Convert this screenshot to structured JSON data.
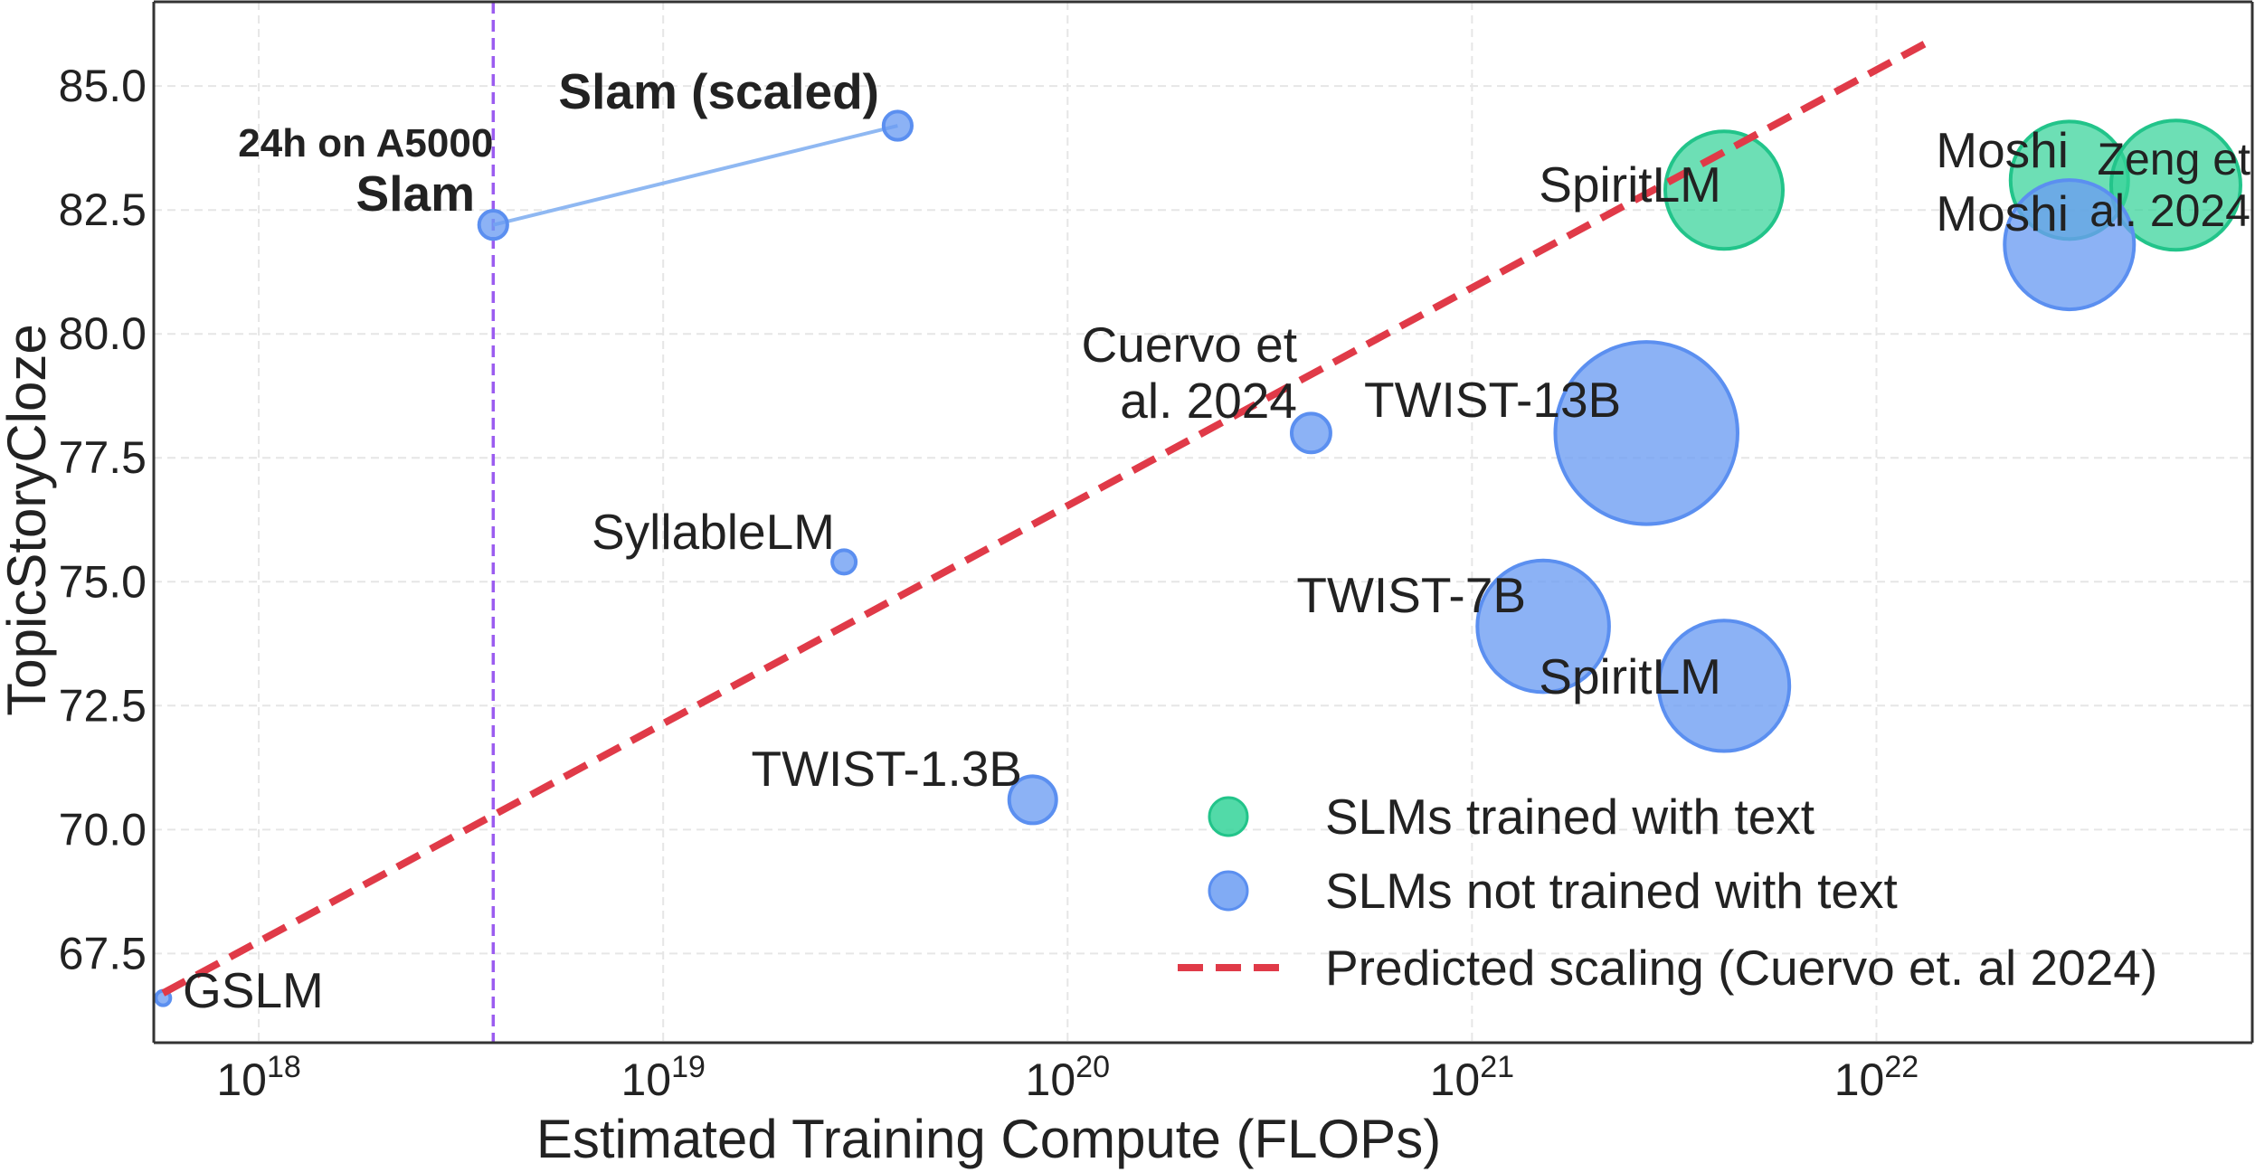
{
  "chart_data": {
    "type": "scatter",
    "xlabel": "Estimated Training Compute (FLOPs)",
    "ylabel": "TopicStoryCloze",
    "x_scale": "log",
    "xlim": [
      5.5e+17,
      8.5e+22
    ],
    "ylim": [
      65.7,
      86.7
    ],
    "x_ticks": [
      {
        "value": 1e+18,
        "base": "10",
        "exp": "18"
      },
      {
        "value": 1e+19,
        "base": "10",
        "exp": "19"
      },
      {
        "value": 1e+20,
        "base": "10",
        "exp": "20"
      },
      {
        "value": 1e+21,
        "base": "10",
        "exp": "21"
      },
      {
        "value": 1e+22,
        "base": "10",
        "exp": "22"
      }
    ],
    "y_ticks": [
      67.5,
      70.0,
      72.5,
      75.0,
      77.5,
      80.0,
      82.5,
      85.0
    ],
    "y_tick_labels": [
      "67.5",
      "70.0",
      "72.5",
      "75.0",
      "77.5",
      "80.0",
      "82.5",
      "85.0"
    ],
    "grid": true,
    "colors": {
      "with_text": "#34d399",
      "with_text_edge": "#22c48a",
      "without_text": "#6b9cf2",
      "without_text_edge": "#5b8ff0",
      "scaling": "#e03a48",
      "vline": "#9b5cf0",
      "slam_line": "#8fb8f2"
    },
    "series": [
      {
        "name": "SLMs trained with text",
        "points": [
          {
            "label": "SpiritLM",
            "x": 4.2e+21,
            "y": 82.9,
            "size": 1.0
          },
          {
            "label": "Moshi",
            "x": 3e+22,
            "y": 83.1,
            "size": 1.0
          },
          {
            "label": "Zeng et\nal. 2024",
            "x": 5.5e+22,
            "y": 83.0,
            "size": 1.1
          }
        ]
      },
      {
        "name": "SLMs not trained with text",
        "points": [
          {
            "label": "GSLM",
            "x": 5.8e+17,
            "y": 66.6,
            "size": 0.11
          },
          {
            "label": "Slam",
            "x": 3.8e+18,
            "y": 82.2,
            "size": 0.24
          },
          {
            "label": "Slam (scaled)",
            "x": 3.8e+19,
            "y": 84.2,
            "size": 0.24
          },
          {
            "label": "SyllableLM",
            "x": 2.8e+19,
            "y": 75.4,
            "size": 0.2
          },
          {
            "label": "TWIST-1.3B",
            "x": 8.2e+19,
            "y": 70.6,
            "size": 0.4
          },
          {
            "label": "Cuervo et\nal. 2024",
            "x": 4e+20,
            "y": 78.0,
            "size": 0.33
          },
          {
            "label": "TWIST-13B",
            "x": 2.7e+21,
            "y": 78.0,
            "size": 1.55
          },
          {
            "label": "TWIST-7B",
            "x": 1.5e+21,
            "y": 74.1,
            "size": 1.12
          },
          {
            "label": "SpiritLM",
            "x": 4.2e+21,
            "y": 72.9,
            "size": 1.11
          },
          {
            "label": "Moshi",
            "x": 3e+22,
            "y": 81.8,
            "size": 1.1
          }
        ]
      }
    ],
    "scaling_line": {
      "name": "Predicted scaling (Cuervo et. al 2024)",
      "x": [
        5.8e+17,
        1.35e+22
      ],
      "y": [
        66.7,
        85.9
      ]
    },
    "vline": {
      "x": 3.8e+18,
      "label": "24h on A5000"
    },
    "slam_connector": {
      "x": [
        3.8e+18,
        3.8e+19
      ],
      "y": [
        82.2,
        84.2
      ]
    },
    "legend": {
      "placement": "lower-right",
      "entries": [
        "SLMs trained with text",
        "SLMs not trained with text",
        "Predicted scaling (Cuervo et. al 2024)"
      ]
    }
  }
}
